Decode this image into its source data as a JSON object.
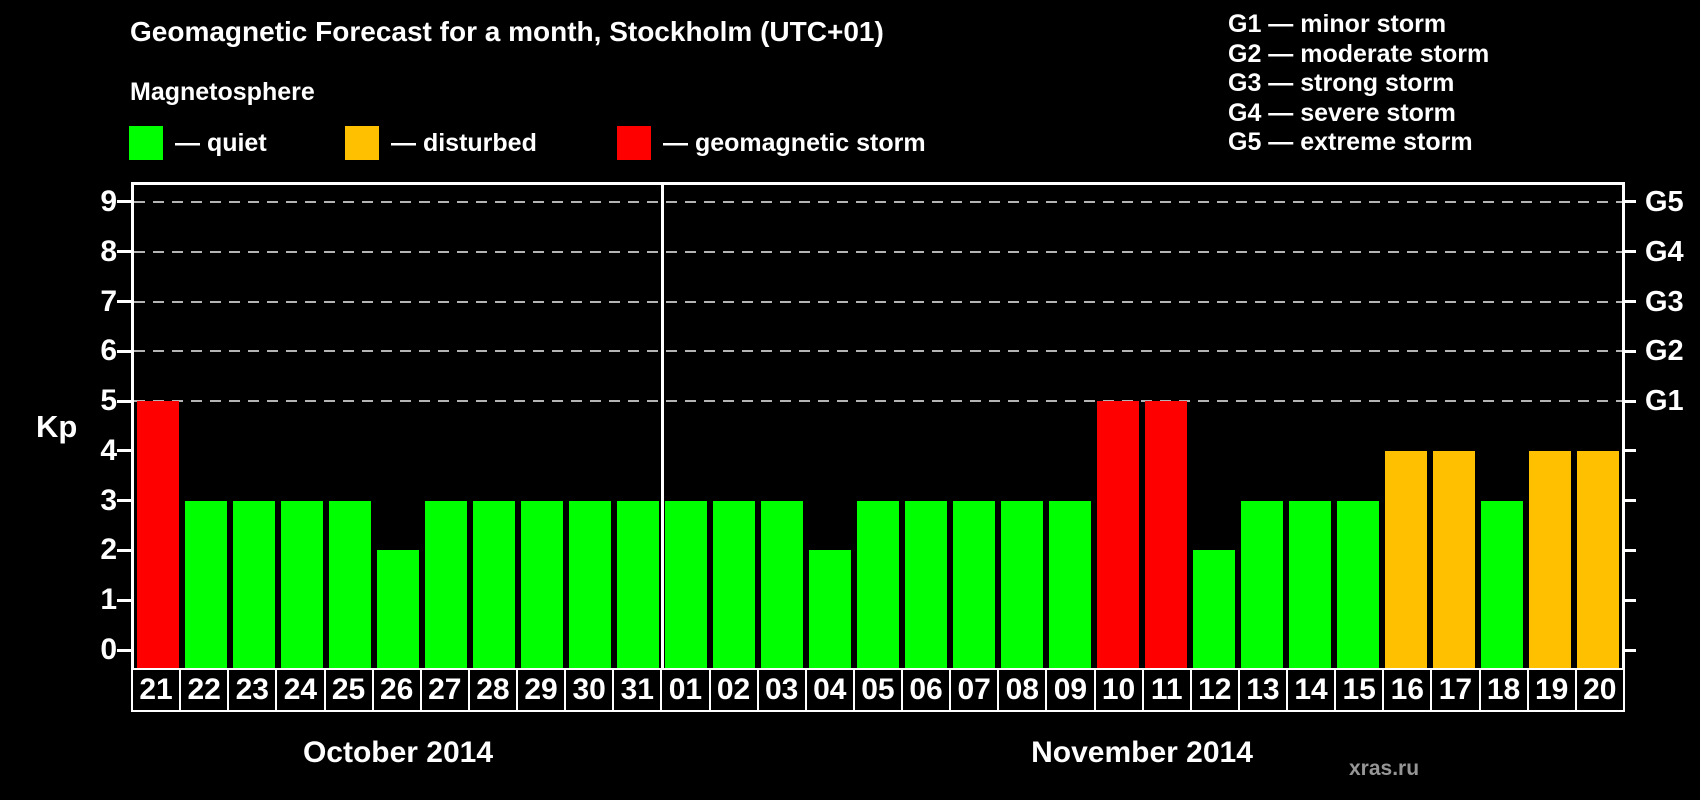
{
  "header": {
    "title": "Geomagnetic Forecast for a month, Stockholm (UTC+01)",
    "subtitle": "Magnetosphere"
  },
  "legend": {
    "items": [
      {
        "status": "quiet",
        "label": "— quiet"
      },
      {
        "status": "disturbed",
        "label": "— disturbed"
      },
      {
        "status": "storm",
        "label": "— geomagnetic storm"
      }
    ]
  },
  "g_scale_legend": {
    "items": [
      "G1 — minor storm",
      "G2 — moderate storm",
      "G3 — strong storm",
      "G4 — severe storm",
      "G5 — extreme storm"
    ]
  },
  "watermark": "xras.ru",
  "chart_data": {
    "type": "bar",
    "title": "Geomagnetic Forecast for a month, Stockholm (UTC+01)",
    "xlabel": "",
    "ylabel": "Kp",
    "ylim": [
      0,
      9
    ],
    "yticks": [
      0,
      1,
      2,
      3,
      4,
      5,
      6,
      7,
      8,
      9
    ],
    "gridline_values": [
      5,
      6,
      7,
      8,
      9
    ],
    "grid": "dashed horizontal at Kp 5-9 only",
    "legend_position": "top",
    "right_axis": [
      {
        "value": 5,
        "label": "G1"
      },
      {
        "value": 6,
        "label": "G2"
      },
      {
        "value": 7,
        "label": "G3"
      },
      {
        "value": 8,
        "label": "G4"
      },
      {
        "value": 9,
        "label": "G5"
      }
    ],
    "status_colors": {
      "quiet": "#00ff00",
      "disturbed": "#ffc000",
      "storm": "#ff0000"
    },
    "months": [
      {
        "label": "October 2014",
        "days": 11
      },
      {
        "label": "November 2014",
        "days": 20
      }
    ],
    "points": [
      {
        "day": "21",
        "kp": 5,
        "status": "storm"
      },
      {
        "day": "22",
        "kp": 3,
        "status": "quiet"
      },
      {
        "day": "23",
        "kp": 3,
        "status": "quiet"
      },
      {
        "day": "24",
        "kp": 3,
        "status": "quiet"
      },
      {
        "day": "25",
        "kp": 3,
        "status": "quiet"
      },
      {
        "day": "26",
        "kp": 2,
        "status": "quiet"
      },
      {
        "day": "27",
        "kp": 3,
        "status": "quiet"
      },
      {
        "day": "28",
        "kp": 3,
        "status": "quiet"
      },
      {
        "day": "29",
        "kp": 3,
        "status": "quiet"
      },
      {
        "day": "30",
        "kp": 3,
        "status": "quiet"
      },
      {
        "day": "31",
        "kp": 3,
        "status": "quiet"
      },
      {
        "day": "01",
        "kp": 3,
        "status": "quiet"
      },
      {
        "day": "02",
        "kp": 3,
        "status": "quiet"
      },
      {
        "day": "03",
        "kp": 3,
        "status": "quiet"
      },
      {
        "day": "04",
        "kp": 2,
        "status": "quiet"
      },
      {
        "day": "05",
        "kp": 3,
        "status": "quiet"
      },
      {
        "day": "06",
        "kp": 3,
        "status": "quiet"
      },
      {
        "day": "07",
        "kp": 3,
        "status": "quiet"
      },
      {
        "day": "08",
        "kp": 3,
        "status": "quiet"
      },
      {
        "day": "09",
        "kp": 3,
        "status": "quiet"
      },
      {
        "day": "10",
        "kp": 5,
        "status": "storm"
      },
      {
        "day": "11",
        "kp": 5,
        "status": "storm"
      },
      {
        "day": "12",
        "kp": 2,
        "status": "quiet"
      },
      {
        "day": "13",
        "kp": 3,
        "status": "quiet"
      },
      {
        "day": "14",
        "kp": 3,
        "status": "quiet"
      },
      {
        "day": "15",
        "kp": 3,
        "status": "quiet"
      },
      {
        "day": "16",
        "kp": 4,
        "status": "disturbed"
      },
      {
        "day": "17",
        "kp": 4,
        "status": "disturbed"
      },
      {
        "day": "18",
        "kp": 3,
        "status": "quiet"
      },
      {
        "day": "19",
        "kp": 4,
        "status": "disturbed"
      },
      {
        "day": "20",
        "kp": 4,
        "status": "disturbed"
      }
    ]
  }
}
